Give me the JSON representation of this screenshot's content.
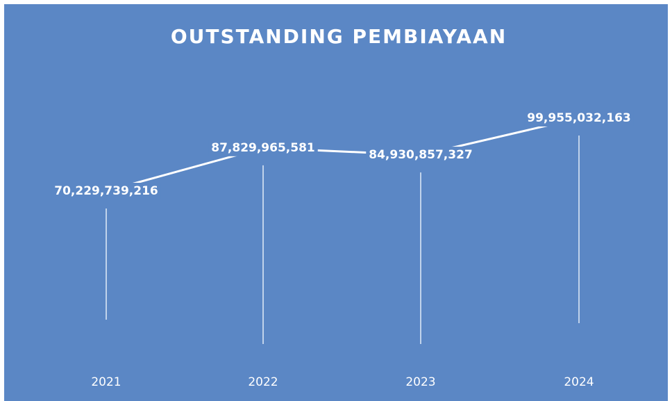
{
  "chart_data": {
    "type": "line",
    "title": "OUTSTANDING PEMBIAYAAN",
    "categories": [
      "2021",
      "2022",
      "2023",
      "2024"
    ],
    "values": [
      70229739216,
      87829965581,
      84930857327,
      99955032163
    ],
    "value_labels": [
      "70,229,739,216",
      "87,829,965,581",
      "84,930,857,327",
      "99,955,032,163"
    ],
    "color": "#ffffff"
  }
}
